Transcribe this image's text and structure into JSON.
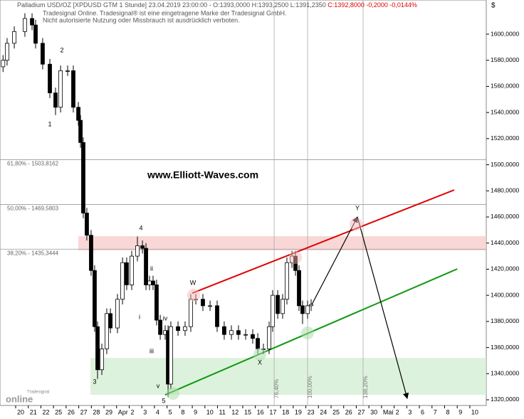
{
  "chart_data": {
    "type": "candlestick",
    "title": "Palladium USD/OZ [XPDUSD GTM  1 Stunde] 23.04.2019 23:00:00 - O:1393,0000 H:1393,2500 L:1391,2350",
    "title_change": "C:1392,8000 -0,2000 -0,0144%",
    "subtitle": [
      "Tradesignal Online. Tradesignal® ist eine eingetragene Marke der Tradesignal GmbH.",
      "Nicht autorisierte Nutzung oder Missbrauch ist ausdrücklich verboten."
    ],
    "watermark": "www.Elliott-Waves.com",
    "currency": "$",
    "logo": [
      "Tradesignal",
      "online"
    ],
    "xlim": [
      -1.2415,
      37.302
    ],
    "xticks": [
      {
        "value": 0,
        "label": "20"
      },
      {
        "value": 1,
        "label": "21"
      },
      {
        "value": 2,
        "label": "22"
      },
      {
        "value": 3,
        "label": "25"
      },
      {
        "value": 4,
        "label": "26"
      },
      {
        "value": 5,
        "label": "27"
      },
      {
        "value": 6,
        "label": "28"
      },
      {
        "value": 7,
        "label": "29"
      },
      {
        "value": 8,
        "label": "Apr"
      },
      {
        "value": 9,
        "label": "2"
      },
      {
        "value": 10,
        "label": "3"
      },
      {
        "value": 11,
        "label": "4"
      },
      {
        "value": 12,
        "label": "5"
      },
      {
        "value": 13,
        "label": "8"
      },
      {
        "value": 14,
        "label": "9"
      },
      {
        "value": 15,
        "label": "10"
      },
      {
        "value": 16,
        "label": "11"
      },
      {
        "value": 17,
        "label": "12"
      },
      {
        "value": 18,
        "label": "15"
      },
      {
        "value": 19,
        "label": "16"
      },
      {
        "value": 20,
        "label": "17"
      },
      {
        "value": 21,
        "label": "18"
      },
      {
        "value": 22,
        "label": "19"
      },
      {
        "value": 23,
        "label": "23"
      },
      {
        "value": 24,
        "label": "24"
      },
      {
        "value": 25,
        "label": "25"
      },
      {
        "value": 26,
        "label": "26"
      },
      {
        "value": 27,
        "label": "27"
      },
      {
        "value": 28,
        "label": "30"
      },
      {
        "value": 29,
        "label": "Mai"
      },
      {
        "value": 30,
        "label": "2"
      },
      {
        "value": 31,
        "label": "3"
      },
      {
        "value": 32,
        "label": "6"
      },
      {
        "value": 33,
        "label": "7"
      },
      {
        "value": 34,
        "label": "8"
      },
      {
        "value": 35,
        "label": "9"
      },
      {
        "value": 36,
        "label": "10"
      }
    ],
    "ylim": [
      1315.64,
      1626.15
    ],
    "yticks": [
      {
        "value": 1320,
        "label": "1320,0000"
      },
      {
        "value": 1340,
        "label": "1340,0000"
      },
      {
        "value": 1360,
        "label": "1360,0000"
      },
      {
        "value": 1380,
        "label": "1380,0000"
      },
      {
        "value": 1400,
        "label": "1400,0000"
      },
      {
        "value": 1420,
        "label": "1420,0000"
      },
      {
        "value": 1440,
        "label": "1440,0000"
      },
      {
        "value": 1460,
        "label": "1460,0000"
      },
      {
        "value": 1480,
        "label": "1480,0000"
      },
      {
        "value": 1500,
        "label": "1500,0000"
      },
      {
        "value": 1520,
        "label": "1520,0000"
      },
      {
        "value": 1540,
        "label": "1540,0000"
      },
      {
        "value": 1560,
        "label": "1560,0000"
      },
      {
        "value": 1580,
        "label": "1580,0000"
      },
      {
        "value": 1600,
        "label": "1600,0000"
      }
    ],
    "color": "#000000",
    "candles": {
      "x": [
        -1.0,
        -0.68,
        -0.11,
        0.73,
        1.3,
        1.58,
        2.14,
        2.71,
        3.16,
        3.56,
        4.12,
        4.57,
        4.97,
        5.14,
        5.36,
        5.64,
        5.98,
        6.26,
        6.49,
        6.83,
        7.22,
        7.51,
        8.07,
        8.47,
        8.8,
        9.2,
        9.65,
        10.05,
        10.33,
        10.61,
        10.89,
        11.17,
        11.46,
        11.85,
        12.08,
        12.3,
        12.87,
        13.43,
        13.88,
        14.28,
        14.84,
        15.41,
        15.97,
        16.53,
        17.1,
        17.66,
        18.23,
        18.79,
        19.19,
        19.64,
        20.09,
        20.37,
        20.77,
        21.16,
        21.5,
        21.9,
        22.18,
        22.46,
        22.74,
        23.14,
        23.42
      ],
      "open": [
        1575,
        1580,
        1593,
        1602,
        1612,
        1607,
        1593,
        1577,
        1555,
        1544,
        1572,
        1572,
        1544,
        1534,
        1517,
        1463,
        1446,
        1419,
        1376,
        1343,
        1359,
        1386,
        1375,
        1397,
        1425,
        1408,
        1430,
        1438,
        1436,
        1408,
        1411,
        1408,
        1381,
        1370,
        1373,
        1332,
        1376,
        1373,
        1376,
        1397,
        1397,
        1392,
        1392,
        1376,
        1370,
        1373,
        1370,
        1370,
        1367,
        1359,
        1359,
        1376,
        1400,
        1386,
        1397,
        1425,
        1430,
        1419,
        1392,
        1386,
        1392
      ],
      "high": [
        1584,
        1597,
        1606,
        1616,
        1616,
        1611,
        1597,
        1581,
        1559,
        1576,
        1576,
        1576,
        1548,
        1538,
        1521,
        1467,
        1450,
        1423,
        1380,
        1363,
        1390,
        1390,
        1401,
        1429,
        1429,
        1434,
        1445,
        1442,
        1440,
        1415,
        1415,
        1412,
        1385,
        1377,
        1377,
        1380,
        1380,
        1380,
        1401,
        1401,
        1401,
        1396,
        1396,
        1380,
        1377,
        1377,
        1374,
        1374,
        1371,
        1363,
        1380,
        1404,
        1404,
        1401,
        1429,
        1434,
        1434,
        1423,
        1396,
        1396,
        1397
      ],
      "low": [
        1571,
        1576,
        1589,
        1598,
        1603,
        1589,
        1573,
        1551,
        1538,
        1540,
        1568,
        1540,
        1530,
        1513,
        1459,
        1442,
        1415,
        1372,
        1336,
        1339,
        1355,
        1371,
        1371,
        1393,
        1404,
        1404,
        1426,
        1432,
        1404,
        1404,
        1404,
        1377,
        1366,
        1366,
        1322,
        1328,
        1369,
        1369,
        1372,
        1393,
        1388,
        1388,
        1372,
        1366,
        1366,
        1366,
        1366,
        1363,
        1355,
        1355,
        1355,
        1372,
        1382,
        1382,
        1393,
        1421,
        1415,
        1388,
        1378,
        1382,
        1388
      ],
      "close": [
        1580,
        1593,
        1602,
        1612,
        1607,
        1593,
        1577,
        1555,
        1544,
        1572,
        1572,
        1544,
        1534,
        1517,
        1463,
        1446,
        1419,
        1376,
        1343,
        1359,
        1386,
        1375,
        1397,
        1425,
        1408,
        1430,
        1438,
        1436,
        1408,
        1411,
        1408,
        1381,
        1370,
        1373,
        1332,
        1376,
        1373,
        1376,
        1397,
        1397,
        1392,
        1392,
        1376,
        1370,
        1373,
        1370,
        1370,
        1367,
        1359,
        1359,
        1376,
        1400,
        1386,
        1397,
        1425,
        1430,
        1419,
        1392,
        1386,
        1392,
        1393
      ]
    },
    "price_levels": [
      {
        "label": "61,80% - 1503,8162",
        "value": 1503.8162
      },
      {
        "label": "50,00% - 1469,5803",
        "value": 1469.5803
      },
      {
        "label": "38,20% - 1435,3444",
        "value": 1435.3444
      }
    ],
    "time_levels": [
      {
        "label": "76,40%",
        "x": 20.49
      },
      {
        "label": "100,00%",
        "x": 23.14
      },
      {
        "label": "138,20%",
        "x": 27.54
      }
    ],
    "zones": [
      {
        "color": "#f7c6c6",
        "range": [
          1434.4,
          1445.3
        ]
      },
      {
        "color": "#cfeccf",
        "range": [
          1323.8,
          1352.1
        ]
      }
    ],
    "trend_lines": [
      {
        "color": "#e00000",
        "x": [
          14.0,
          34.76
        ],
        "values": [
          1401.7,
          1480.7
        ]
      },
      {
        "color": "#119911",
        "x": [
          11.85,
          35.0
        ],
        "values": [
          1323.8,
          1420.2
        ]
      },
      {
        "color": "#000000",
        "x": [
          23.42,
          27.09
        ],
        "values": [
          1391.9,
          1460
        ]
      },
      {
        "color": "#000000",
        "x": [
          27.09,
          31.04
        ],
        "values": [
          1460,
          1321
        ]
      }
    ],
    "wave_labels": [
      "1",
      "2",
      "3",
      "4",
      "5",
      "i",
      "ii",
      "iii",
      "iv",
      "v",
      "W",
      "X",
      "Y"
    ]
  }
}
